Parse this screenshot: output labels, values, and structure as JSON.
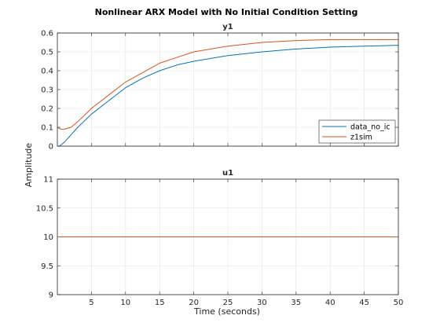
{
  "chart_data": {
    "title": "Nonlinear ARX Model with No Initial Condition Setting",
    "xlabel": "Time (seconds)",
    "ylabel": "Amplitude",
    "x_ticks": [
      "5",
      "10",
      "15",
      "20",
      "25",
      "30",
      "35",
      "40",
      "45",
      "50"
    ],
    "grid": true,
    "panels": [
      {
        "title": "y1",
        "type": "line",
        "xlim": [
          0,
          50
        ],
        "ylim": [
          0,
          0.6
        ],
        "y_ticks": [
          "0",
          "0.1",
          "0.2",
          "0.3",
          "0.4",
          "0.5",
          "0.6"
        ],
        "legend": {
          "placement": "right",
          "entries": [
            "data_no_ic",
            "z1sim"
          ]
        },
        "series": [
          {
            "name": "data_no_ic",
            "color": "#0072BD",
            "x": [
              0,
              0.3,
              1,
              2,
              3,
              5,
              7.5,
              10,
              12.5,
              15,
              17.5,
              20,
              25,
              30,
              35,
              40,
              45,
              50
            ],
            "y": [
              0.0,
              0.0,
              0.02,
              0.06,
              0.1,
              0.17,
              0.24,
              0.31,
              0.36,
              0.4,
              0.43,
              0.45,
              0.48,
              0.5,
              0.515,
              0.525,
              0.53,
              0.535
            ]
          },
          {
            "name": "z1sim",
            "color": "#D95319",
            "x": [
              0,
              0.5,
              1,
              2,
              3,
              5,
              7.5,
              10,
              12.5,
              15,
              17.5,
              20,
              25,
              30,
              35,
              40,
              45,
              50
            ],
            "y": [
              0.1,
              0.09,
              0.09,
              0.1,
              0.13,
              0.2,
              0.27,
              0.34,
              0.39,
              0.44,
              0.47,
              0.5,
              0.53,
              0.55,
              0.56,
              0.565,
              0.565,
              0.565
            ]
          }
        ]
      },
      {
        "title": "u1",
        "type": "line",
        "xlim": [
          0,
          50
        ],
        "ylim": [
          9,
          11
        ],
        "y_ticks": [
          "9",
          "9.5",
          "10",
          "10.5",
          "11"
        ],
        "series": [
          {
            "color": "#D95319",
            "x": [
              0,
              50
            ],
            "y": [
              10,
              10
            ]
          }
        ]
      }
    ]
  }
}
